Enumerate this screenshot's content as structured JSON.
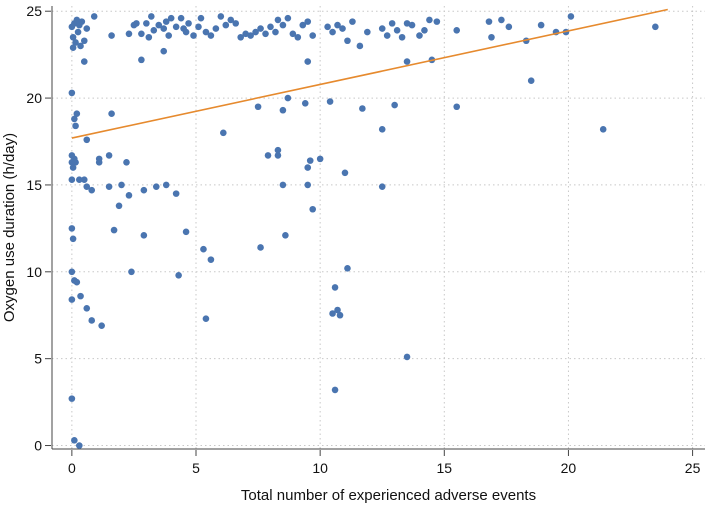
{
  "chart_data": {
    "type": "scatter",
    "title": "",
    "xlabel": "Total number of experienced adverse events",
    "ylabel": "Oxygen use duration (h/day)",
    "xlim": [
      -0.8,
      25.5
    ],
    "ylim": [
      -0.2,
      25.3
    ],
    "xticks": [
      0,
      5,
      10,
      15,
      20,
      25
    ],
    "yticks": [
      0,
      5,
      10,
      15,
      20,
      25
    ],
    "grid": true,
    "legend": "none",
    "colors": {
      "points": "#4a75b0",
      "fit": "#e68a2e",
      "grid": "#c8c8c8",
      "axis": "#444444"
    },
    "fit_line": {
      "name": "Linear fit",
      "x": [
        0,
        24
      ],
      "y": [
        17.7,
        25.1
      ]
    },
    "series": [
      {
        "name": "Observations",
        "points": [
          [
            0.0,
            24.1
          ],
          [
            0.05,
            23.5
          ],
          [
            0.1,
            24.3
          ],
          [
            0.15,
            23.2
          ],
          [
            0.2,
            24.5
          ],
          [
            0.25,
            23.8
          ],
          [
            0.3,
            24.2
          ],
          [
            0.35,
            23.0
          ],
          [
            0.05,
            22.9
          ],
          [
            0.4,
            24.4
          ],
          [
            0.5,
            23.3
          ],
          [
            0.6,
            24.0
          ],
          [
            0.5,
            22.1
          ],
          [
            0.9,
            24.7
          ],
          [
            1.6,
            23.6
          ],
          [
            2.3,
            23.7
          ],
          [
            2.5,
            24.2
          ],
          [
            2.6,
            24.3
          ],
          [
            2.8,
            23.7
          ],
          [
            3.0,
            24.3
          ],
          [
            3.1,
            23.5
          ],
          [
            3.2,
            24.7
          ],
          [
            3.3,
            23.9
          ],
          [
            3.5,
            24.2
          ],
          [
            3.7,
            24.0
          ],
          [
            3.8,
            24.4
          ],
          [
            3.9,
            23.6
          ],
          [
            4.0,
            24.6
          ],
          [
            4.2,
            24.1
          ],
          [
            4.4,
            24.6
          ],
          [
            4.5,
            24.0
          ],
          [
            4.6,
            23.8
          ],
          [
            4.7,
            24.3
          ],
          [
            4.9,
            23.6
          ],
          [
            5.1,
            24.1
          ],
          [
            5.2,
            24.6
          ],
          [
            5.4,
            23.8
          ],
          [
            5.6,
            23.6
          ],
          [
            5.8,
            24.0
          ],
          [
            6.0,
            24.7
          ],
          [
            6.2,
            24.2
          ],
          [
            6.4,
            24.5
          ],
          [
            6.6,
            24.3
          ],
          [
            6.8,
            23.5
          ],
          [
            7.0,
            23.7
          ],
          [
            7.2,
            23.6
          ],
          [
            7.4,
            23.8
          ],
          [
            7.6,
            24.0
          ],
          [
            7.8,
            23.7
          ],
          [
            8.0,
            24.1
          ],
          [
            8.2,
            23.8
          ],
          [
            8.3,
            24.5
          ],
          [
            8.5,
            24.2
          ],
          [
            8.7,
            24.6
          ],
          [
            8.9,
            23.7
          ],
          [
            9.1,
            23.5
          ],
          [
            9.3,
            24.2
          ],
          [
            9.5,
            24.4
          ],
          [
            9.7,
            23.6
          ],
          [
            10.3,
            24.1
          ],
          [
            10.5,
            23.8
          ],
          [
            10.7,
            24.2
          ],
          [
            10.9,
            24.0
          ],
          [
            11.1,
            23.3
          ],
          [
            11.3,
            24.4
          ],
          [
            11.6,
            23.0
          ],
          [
            11.9,
            23.8
          ],
          [
            12.5,
            24.0
          ],
          [
            12.7,
            23.6
          ],
          [
            12.9,
            24.3
          ],
          [
            13.1,
            23.9
          ],
          [
            13.3,
            23.5
          ],
          [
            13.5,
            24.3
          ],
          [
            13.7,
            24.2
          ],
          [
            14.0,
            23.6
          ],
          [
            14.2,
            23.9
          ],
          [
            14.4,
            24.5
          ],
          [
            14.7,
            24.4
          ],
          [
            15.5,
            23.9
          ],
          [
            16.8,
            24.4
          ],
          [
            17.3,
            24.5
          ],
          [
            17.6,
            24.1
          ],
          [
            18.9,
            24.2
          ],
          [
            19.5,
            23.8
          ],
          [
            20.1,
            24.7
          ],
          [
            23.5,
            24.1
          ],
          [
            2.8,
            22.2
          ],
          [
            3.7,
            22.7
          ],
          [
            9.5,
            22.1
          ],
          [
            13.5,
            22.1
          ],
          [
            14.5,
            22.2
          ],
          [
            18.3,
            23.3
          ],
          [
            19.9,
            23.8
          ],
          [
            16.9,
            23.5
          ],
          [
            0.0,
            20.3
          ],
          [
            0.1,
            18.8
          ],
          [
            0.2,
            19.1
          ],
          [
            0.15,
            18.4
          ],
          [
            1.6,
            19.1
          ],
          [
            0.6,
            17.6
          ],
          [
            6.1,
            18.0
          ],
          [
            7.5,
            19.5
          ],
          [
            8.5,
            19.3
          ],
          [
            8.7,
            20.0
          ],
          [
            9.4,
            19.7
          ],
          [
            10.4,
            19.8
          ],
          [
            11.7,
            19.4
          ],
          [
            13.0,
            19.6
          ],
          [
            12.5,
            18.2
          ],
          [
            15.5,
            19.5
          ],
          [
            18.5,
            21.0
          ],
          [
            21.4,
            18.2
          ],
          [
            0.0,
            16.7
          ],
          [
            0.1,
            16.5
          ],
          [
            0.0,
            16.3
          ],
          [
            0.05,
            16.0
          ],
          [
            0.15,
            16.3
          ],
          [
            0.3,
            15.3
          ],
          [
            0.0,
            15.3
          ],
          [
            0.5,
            15.3
          ],
          [
            0.6,
            14.9
          ],
          [
            0.8,
            14.7
          ],
          [
            1.1,
            16.5
          ],
          [
            1.1,
            16.3
          ],
          [
            1.5,
            16.7
          ],
          [
            1.5,
            14.9
          ],
          [
            1.7,
            12.4
          ],
          [
            1.9,
            13.8
          ],
          [
            2.0,
            15.0
          ],
          [
            2.2,
            16.3
          ],
          [
            2.3,
            14.4
          ],
          [
            2.9,
            14.7
          ],
          [
            2.9,
            12.1
          ],
          [
            3.4,
            14.9
          ],
          [
            3.8,
            15.0
          ],
          [
            4.2,
            14.5
          ],
          [
            4.6,
            12.3
          ],
          [
            7.9,
            16.7
          ],
          [
            8.3,
            17.0
          ],
          [
            8.3,
            16.7
          ],
          [
            8.5,
            15.0
          ],
          [
            9.5,
            15.0
          ],
          [
            9.5,
            16.0
          ],
          [
            9.7,
            13.6
          ],
          [
            9.6,
            16.4
          ],
          [
            10.0,
            16.5
          ],
          [
            11.0,
            15.7
          ],
          [
            12.5,
            14.9
          ],
          [
            0.0,
            12.5
          ],
          [
            0.05,
            11.9
          ],
          [
            0.0,
            10.0
          ],
          [
            0.1,
            9.5
          ],
          [
            0.2,
            9.4
          ],
          [
            0.0,
            8.4
          ],
          [
            0.35,
            8.6
          ],
          [
            0.6,
            7.9
          ],
          [
            0.8,
            7.2
          ],
          [
            1.2,
            6.9
          ],
          [
            2.4,
            10.0
          ],
          [
            4.3,
            9.8
          ],
          [
            5.3,
            11.3
          ],
          [
            5.6,
            10.7
          ],
          [
            7.6,
            11.4
          ],
          [
            8.6,
            12.1
          ],
          [
            5.4,
            7.3
          ],
          [
            10.6,
            9.1
          ],
          [
            10.5,
            7.6
          ],
          [
            10.8,
            7.5
          ],
          [
            10.7,
            7.8
          ],
          [
            11.1,
            10.2
          ],
          [
            13.5,
            5.1
          ],
          [
            10.6,
            3.2
          ],
          [
            0.0,
            2.7
          ],
          [
            0.1,
            0.3
          ],
          [
            0.3,
            0.0
          ]
        ]
      }
    ]
  }
}
